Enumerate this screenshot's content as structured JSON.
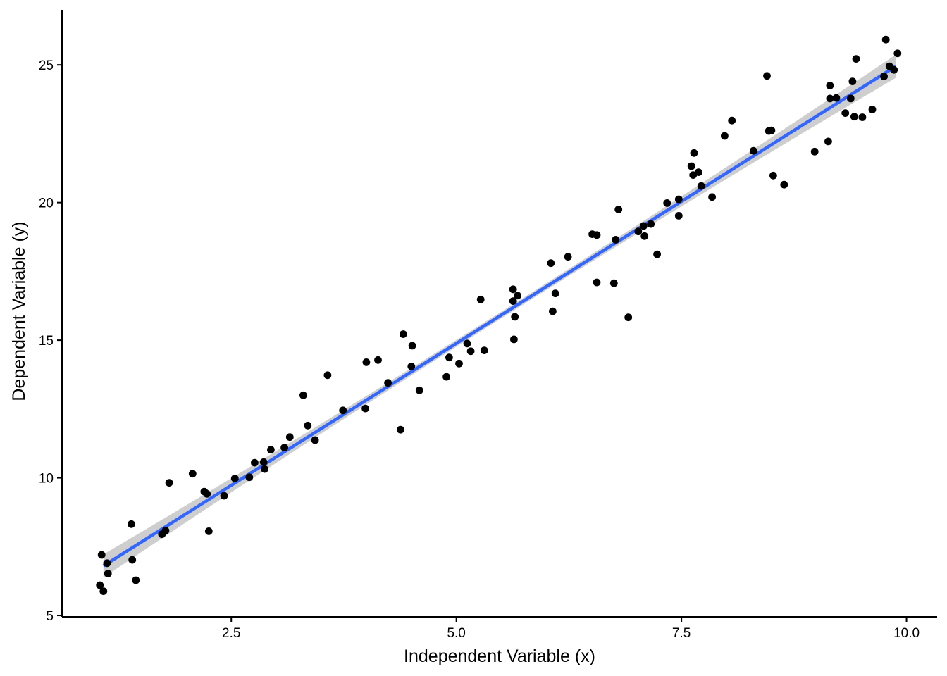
{
  "chart_data": {
    "type": "scatter",
    "title": "",
    "xlabel": "Independent Variable (x)",
    "ylabel": "Dependent Variable (y)",
    "xlim": [
      0.62,
      10.34
    ],
    "ylim": [
      4.95,
      27.0
    ],
    "xticks": [
      2.5,
      5.0,
      7.5,
      10.0
    ],
    "xtick_labels": [
      "2.5",
      "5.0",
      "7.5",
      "10.0"
    ],
    "yticks": [
      5,
      10,
      15,
      20,
      25
    ],
    "ytick_labels": [
      "5",
      "10",
      "15",
      "20",
      "25"
    ],
    "grid": false,
    "legend": "none",
    "colors": {
      "points": "#000000",
      "fit_line": "#3366ff",
      "confidence_band": "#bdbdbd"
    },
    "fit": {
      "method": "linear",
      "x": [
        1.08,
        9.88
      ],
      "y": [
        6.8,
        24.95
      ],
      "confidence_band": true
    },
    "series": [
      {
        "points": [
          [
            1.04,
            6.1
          ],
          [
            1.06,
            7.2
          ],
          [
            1.08,
            5.88
          ],
          [
            1.12,
            6.9
          ],
          [
            1.13,
            6.52
          ],
          [
            1.39,
            8.32
          ],
          [
            1.4,
            7.02
          ],
          [
            1.44,
            6.28
          ],
          [
            1.73,
            7.95
          ],
          [
            1.77,
            8.08
          ],
          [
            1.81,
            9.82
          ],
          [
            2.07,
            10.15
          ],
          [
            2.2,
            9.5
          ],
          [
            2.23,
            9.42
          ],
          [
            2.25,
            8.06
          ],
          [
            2.42,
            9.35
          ],
          [
            2.54,
            9.98
          ],
          [
            2.7,
            10.02
          ],
          [
            2.76,
            10.55
          ],
          [
            2.86,
            10.57
          ],
          [
            2.87,
            10.32
          ],
          [
            2.94,
            11.02
          ],
          [
            3.09,
            11.1
          ],
          [
            3.15,
            11.48
          ],
          [
            3.3,
            13.0
          ],
          [
            3.35,
            11.9
          ],
          [
            3.43,
            11.37
          ],
          [
            3.57,
            13.73
          ],
          [
            3.74,
            12.45
          ],
          [
            3.99,
            12.52
          ],
          [
            4.0,
            14.2
          ],
          [
            4.13,
            14.28
          ],
          [
            4.24,
            13.45
          ],
          [
            4.38,
            11.75
          ],
          [
            4.41,
            15.22
          ],
          [
            4.5,
            14.05
          ],
          [
            4.51,
            14.8
          ],
          [
            4.59,
            13.18
          ],
          [
            4.89,
            13.67
          ],
          [
            4.92,
            14.37
          ],
          [
            5.03,
            14.15
          ],
          [
            5.12,
            14.88
          ],
          [
            5.16,
            14.6
          ],
          [
            5.27,
            16.48
          ],
          [
            5.31,
            14.63
          ],
          [
            5.63,
            16.42
          ],
          [
            5.63,
            16.85
          ],
          [
            5.64,
            15.03
          ],
          [
            5.65,
            15.85
          ],
          [
            5.68,
            16.62
          ],
          [
            6.05,
            17.8
          ],
          [
            6.07,
            16.05
          ],
          [
            6.1,
            16.7
          ],
          [
            6.24,
            18.03
          ],
          [
            6.51,
            18.85
          ],
          [
            6.56,
            18.82
          ],
          [
            6.56,
            17.1
          ],
          [
            6.75,
            17.07
          ],
          [
            6.77,
            18.65
          ],
          [
            6.8,
            19.75
          ],
          [
            6.91,
            15.83
          ],
          [
            7.02,
            18.95
          ],
          [
            7.08,
            19.15
          ],
          [
            7.09,
            18.78
          ],
          [
            7.16,
            19.22
          ],
          [
            7.23,
            18.12
          ],
          [
            7.34,
            19.98
          ],
          [
            7.47,
            20.12
          ],
          [
            7.47,
            19.52
          ],
          [
            7.61,
            21.32
          ],
          [
            7.63,
            21.0
          ],
          [
            7.64,
            21.8
          ],
          [
            7.69,
            21.1
          ],
          [
            7.72,
            20.6
          ],
          [
            7.84,
            20.2
          ],
          [
            7.98,
            22.42
          ],
          [
            8.06,
            22.98
          ],
          [
            8.3,
            21.88
          ],
          [
            8.45,
            24.6
          ],
          [
            8.47,
            22.6
          ],
          [
            8.5,
            22.62
          ],
          [
            8.52,
            20.98
          ],
          [
            8.64,
            20.65
          ],
          [
            8.98,
            21.85
          ],
          [
            9.13,
            22.22
          ],
          [
            9.15,
            24.25
          ],
          [
            9.15,
            23.78
          ],
          [
            9.22,
            23.8
          ],
          [
            9.32,
            23.25
          ],
          [
            9.38,
            23.78
          ],
          [
            9.4,
            24.4
          ],
          [
            9.42,
            23.12
          ],
          [
            9.44,
            25.22
          ],
          [
            9.51,
            23.1
          ],
          [
            9.62,
            23.38
          ],
          [
            9.75,
            24.58
          ],
          [
            9.77,
            25.92
          ],
          [
            9.81,
            24.95
          ],
          [
            9.86,
            24.82
          ],
          [
            9.9,
            25.42
          ]
        ]
      }
    ]
  }
}
